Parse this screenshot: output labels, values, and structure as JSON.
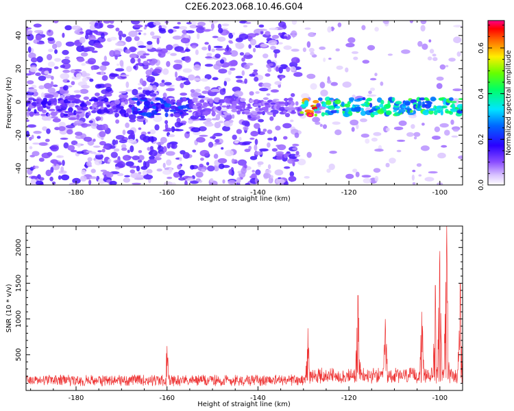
{
  "title": "C2E6.2023.068.10.46.G04",
  "colors": {
    "snr_line": "#ee3333",
    "spectrogram_low": "#8a4dff",
    "spectrogram_mid": "#00e0ff",
    "spectrogram_high": "#ff2a2a"
  },
  "chart_data": [
    {
      "type": "heatmap",
      "name": "spectrogram",
      "xlabel": "Height of straight line (km)",
      "ylabel": "Frequency (Hz)",
      "xlim": [
        -191,
        -95
      ],
      "ylim": [
        -50,
        49
      ],
      "xticks": [
        -180,
        -160,
        -140,
        -120,
        -100
      ],
      "yticks": [
        -40,
        -20,
        0,
        20,
        40
      ],
      "colorbar": {
        "label": "Normalized spectral amplitude",
        "range": [
          0.0,
          0.72
        ],
        "ticks": [
          "0.0",
          "0.2",
          "0.4",
          "0.6"
        ],
        "colormap": "rainbow (purple-blue-cyan-green-yellow-red-magenta)"
      },
      "dominant_signal": {
        "description": "band of high amplitude near 0 Hz, strongest at heights above -130 km",
        "center_frequency_hz": -3,
        "strong_segments": [
          {
            "x_from": -167,
            "x_to": -155,
            "peak": 0.25
          },
          {
            "x_from": -130,
            "x_to": -127,
            "peak": 0.72
          },
          {
            "x_from": -126,
            "x_to": -95,
            "peak": 0.45
          }
        ]
      },
      "background_noise_extent_km": [
        -191,
        -131
      ]
    },
    {
      "type": "line",
      "name": "snr",
      "xlabel": "Height of straight line (km)",
      "ylabel": "SNR (10 * v/v)",
      "xlim": [
        -191,
        -95
      ],
      "ylim": [
        0,
        2300
      ],
      "xticks": [
        -180,
        -160,
        -140,
        -120,
        -100
      ],
      "yticks": [
        500,
        1000,
        1500,
        2000
      ],
      "baseline_level": 200,
      "peaks": [
        {
          "x": -160,
          "y": 620
        },
        {
          "x": -129,
          "y": 870
        },
        {
          "x": -118,
          "y": 1330
        },
        {
          "x": -112,
          "y": 1000
        },
        {
          "x": -104,
          "y": 1100
        },
        {
          "x": -101,
          "y": 1470
        },
        {
          "x": -100,
          "y": 1950
        },
        {
          "x": -98.5,
          "y": 2300
        },
        {
          "x": -95.5,
          "y": 1500
        }
      ]
    }
  ]
}
